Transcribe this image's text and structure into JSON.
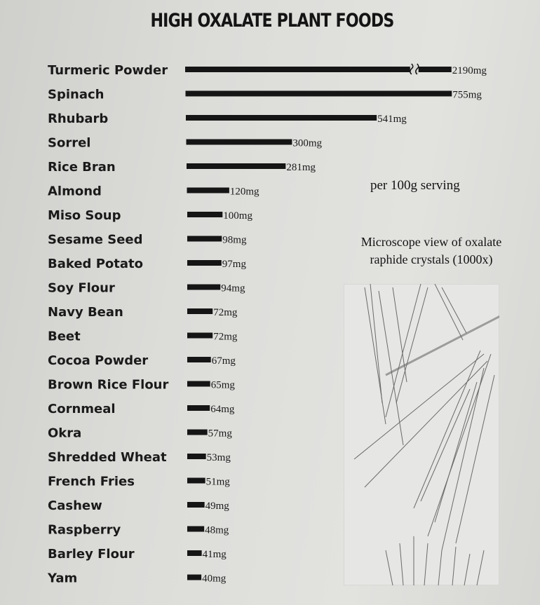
{
  "chart_data": {
    "type": "bar",
    "orientation": "horizontal",
    "title": "HIGH OXALATE PLANT FOODS",
    "unit": "mg",
    "note": "per 100g serving",
    "axis_break_on": "Turmeric Powder",
    "bar_color": "#151515",
    "categories": [
      "Turmeric Powder",
      "Spinach",
      "Rhubarb",
      "Sorrel",
      "Rice Bran",
      "Almond",
      "Miso Soup",
      "Sesame Seed",
      "Baked Potato",
      "Soy Flour",
      "Navy Bean",
      "Beet",
      "Cocoa Powder",
      "Brown Rice Flour",
      "Cornmeal",
      "Okra",
      "Shredded Wheat",
      "French Fries",
      "Cashew",
      "Raspberry",
      "Barley Flour",
      "Yam"
    ],
    "values": [
      2190,
      755,
      541,
      300,
      281,
      120,
      100,
      98,
      97,
      94,
      72,
      72,
      67,
      65,
      64,
      57,
      53,
      51,
      49,
      48,
      41,
      40
    ],
    "value_labels": [
      "2190mg",
      "755mg",
      "541mg",
      "300mg",
      "281mg",
      "120mg",
      "100mg",
      "98mg",
      "97mg",
      "94mg",
      "72mg",
      "72mg",
      "67mg",
      "65mg",
      "64mg",
      "57mg",
      "53mg",
      "51mg",
      "49mg",
      "48mg",
      "41mg",
      "40mg"
    ]
  },
  "image_caption": "Microscope view of oxalate raphide crystals (1000x)"
}
